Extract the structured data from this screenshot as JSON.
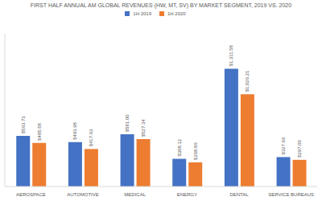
{
  "chart_data": {
    "type": "bar",
    "title": "FIRST HALF ANNUAL AM GLOBAL REVENUES (HW, MT, SV) BY MARKET SEGMENT, 2019 VS. 2020",
    "categories": [
      "AEROSPACE",
      "AUTOMOTIVE",
      "MEDICAL",
      "ENERGY",
      "DENTAL",
      "SERVICE BUREAUS"
    ],
    "series": [
      {
        "name": "1H 2019",
        "color": "#4472c4",
        "values": [
          563.73,
          493.98,
          581.0,
          308.12,
          1311.58,
          327.66
        ],
        "value_labels": [
          "$563.73",
          "$493.98",
          "$581.00",
          "$308.12",
          "$1,311.58",
          "$327.66"
        ]
      },
      {
        "name": "1H 2020",
        "color": "#ed7d31",
        "values": [
          485.58,
          417.63,
          527.34,
          268.86,
          1026.21,
          297.0
        ],
        "value_labels": [
          "$485.58",
          "$417.63",
          "$527.34",
          "$268.86",
          "$1,026.21",
          "$297.00"
        ]
      }
    ],
    "ylim": [
      0,
      1700
    ],
    "grid": false,
    "legend": "top",
    "data_labels": true,
    "tick_labels": "x"
  }
}
